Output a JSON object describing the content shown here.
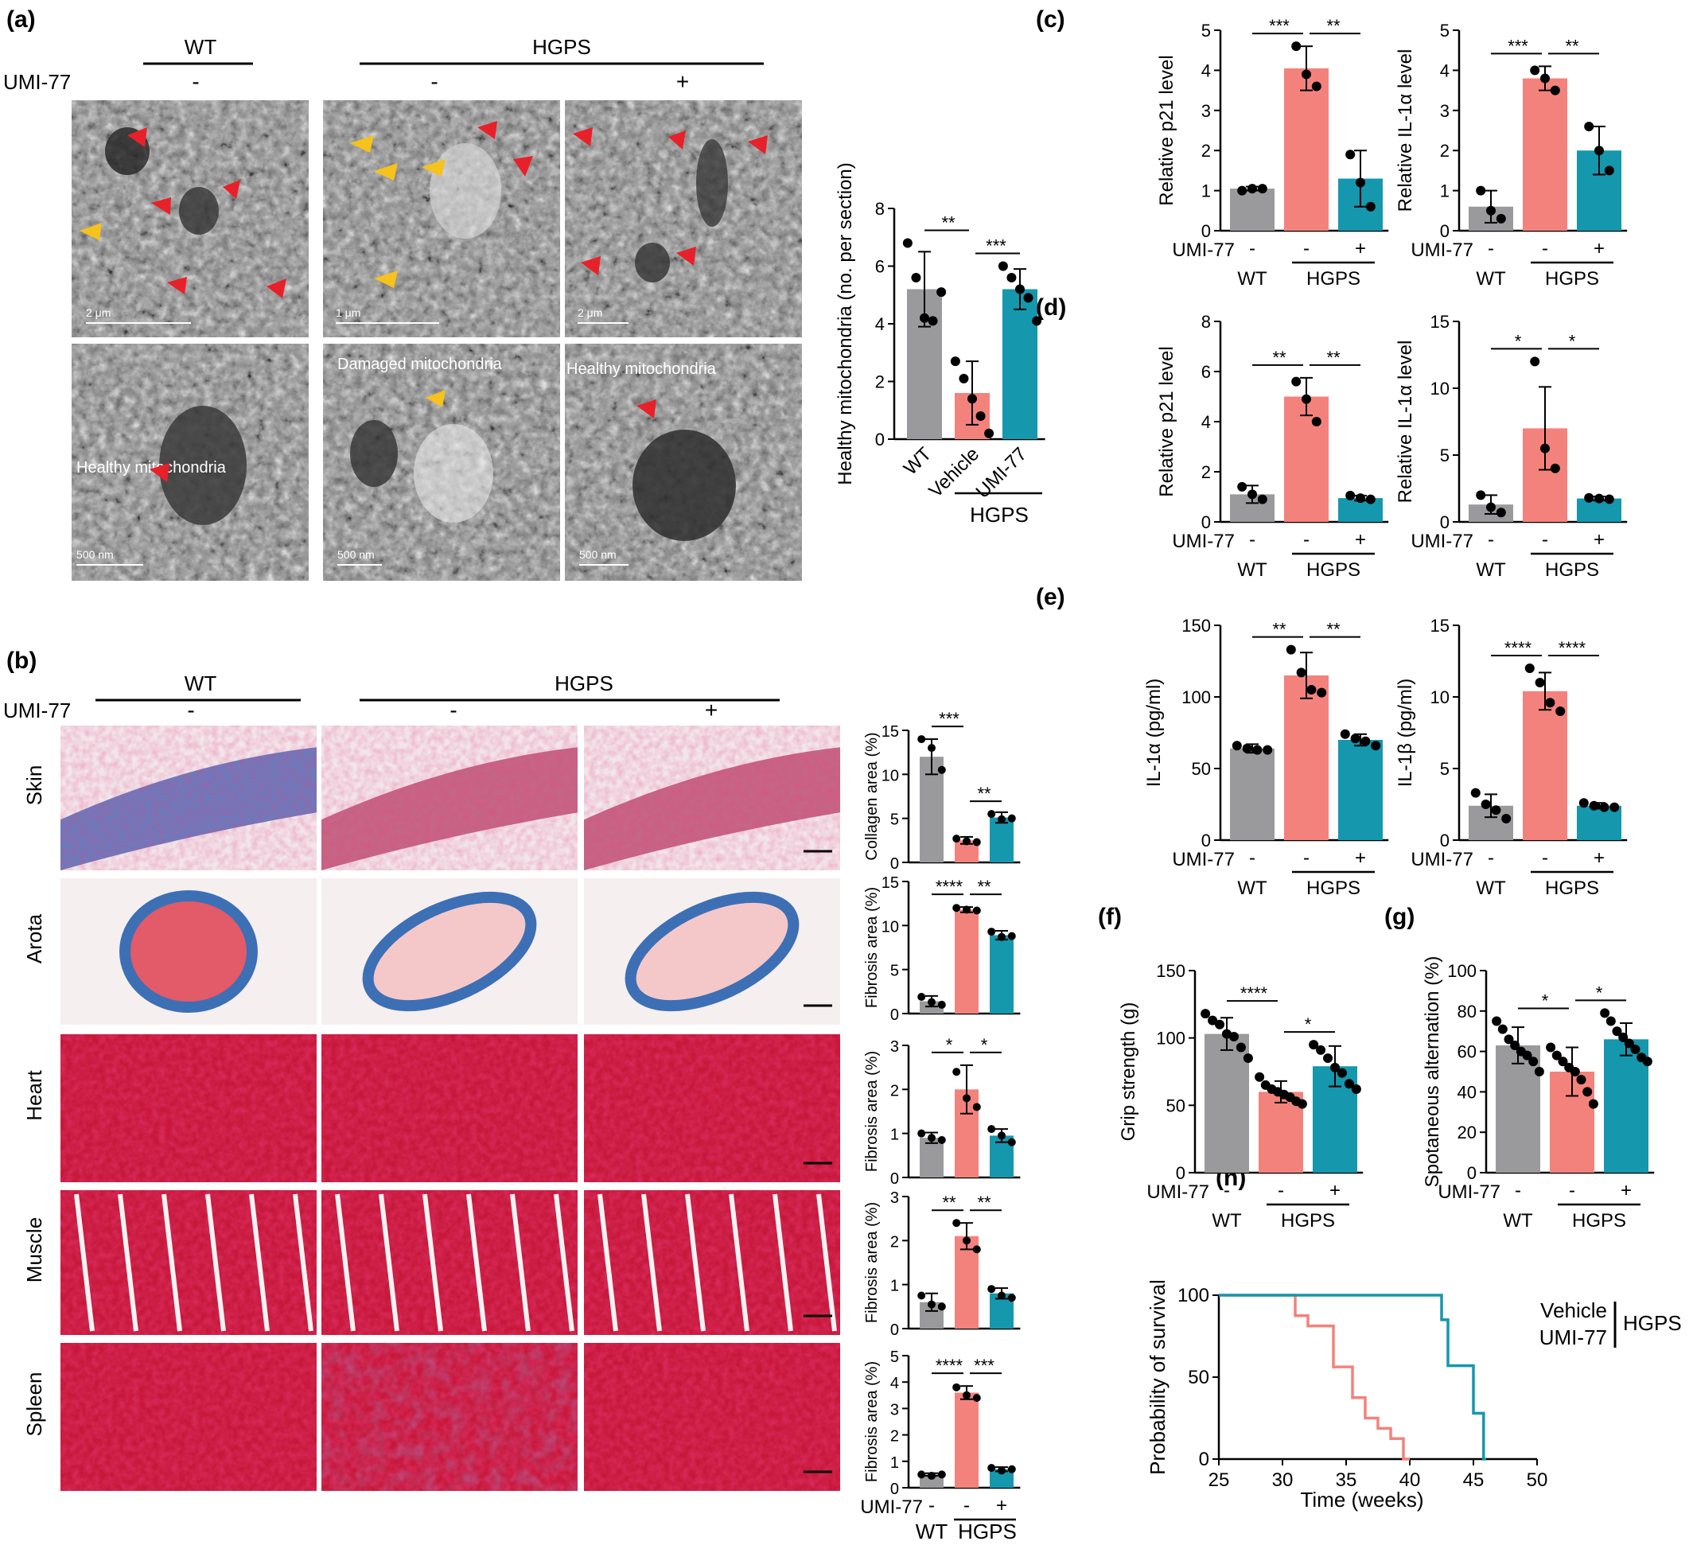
{
  "colors": {
    "wt": "#9a9a9c",
    "vehicle": "#f4827c",
    "umi": "#1597ad",
    "red_arrow": "#e8202a",
    "yellow_arrow": "#f6c21b"
  },
  "panel_labels": {
    "a": "(a)",
    "b": "(b)",
    "c": "(c)",
    "d": "(d)",
    "e": "(e)",
    "f": "(f)",
    "g": "(g)",
    "h": "(h)"
  },
  "common": {
    "wt": "WT",
    "hgps": "HGPS",
    "umi77": "UMI-77",
    "minus": "-",
    "plus": "+",
    "vehicle": "Vehicle"
  },
  "panel_a": {
    "annotations": {
      "damaged": "Damaged mitochondria",
      "healthy_top": "Healthy mitochondria",
      "healthy_left": "Healthy mitochondria"
    },
    "scalebars": [
      "2 μm",
      "1 μm",
      "2 μm",
      "500 nm",
      "500 nm",
      "500 nm"
    ]
  },
  "panel_b": {
    "rows": [
      "Skin",
      "Arota",
      "Heart",
      "Muscle",
      "Spleen"
    ]
  },
  "chart_data": [
    {
      "id": "a",
      "type": "bar",
      "categories": [
        "WT",
        "Vehicle",
        "UMI-77"
      ],
      "group_label": "HGPS",
      "ylabel": "Healthy mitochondria (no. per section)",
      "ylim": [
        0,
        8
      ],
      "yticks": [
        "0",
        "2",
        "4",
        "6",
        "8"
      ],
      "values": [
        5.2,
        1.6,
        5.2
      ],
      "errors": [
        1.3,
        1.1,
        0.7
      ],
      "points": [
        [
          6.8,
          5.6,
          4.2,
          4.1,
          5.1
        ],
        [
          2.7,
          2.1,
          1.4,
          0.8,
          0.2
        ],
        [
          6.0,
          5.6,
          5.2,
          4.9,
          4.1
        ]
      ],
      "significance": [
        "**",
        "***"
      ]
    },
    {
      "id": "b1",
      "type": "bar",
      "ylabel": "Collagen area (%)",
      "ylim": [
        0,
        15
      ],
      "yticks": [
        "0",
        "5",
        "10",
        "15"
      ],
      "values": [
        12.0,
        2.5,
        5.1
      ],
      "errors": [
        2.0,
        0.4,
        0.6
      ],
      "points": [
        [
          14.0,
          13.0,
          10.5
        ],
        [
          2.7,
          2.4,
          2.3
        ],
        [
          5.5,
          4.9,
          5.0
        ]
      ],
      "significance": [
        "***",
        "**"
      ]
    },
    {
      "id": "b2",
      "type": "bar",
      "ylabel": "Fibrosis area (%)",
      "ylim": [
        0,
        15
      ],
      "yticks": [
        "0",
        "5",
        "10",
        "15"
      ],
      "values": [
        1.4,
        11.8,
        8.9
      ],
      "errors": [
        0.6,
        0.3,
        0.5
      ],
      "points": [
        [
          1.9,
          1.3,
          1.0
        ],
        [
          12.0,
          11.8,
          11.7
        ],
        [
          9.3,
          8.7,
          8.8
        ]
      ],
      "significance": [
        "****",
        "**"
      ]
    },
    {
      "id": "b3",
      "type": "bar",
      "ylabel": "Fibrosis area (%)",
      "ylim": [
        0,
        3
      ],
      "yticks": [
        "0",
        "1",
        "2",
        "3"
      ],
      "values": [
        0.9,
        2.0,
        0.95
      ],
      "errors": [
        0.12,
        0.55,
        0.15
      ],
      "points": [
        [
          1.0,
          0.9,
          0.85
        ],
        [
          2.4,
          1.8,
          1.6
        ],
        [
          1.1,
          0.95,
          0.8
        ]
      ],
      "significance": [
        "*",
        "*"
      ]
    },
    {
      "id": "b4",
      "type": "bar",
      "ylabel": "Fibrosis area (%)",
      "ylim": [
        0,
        3
      ],
      "yticks": [
        "0",
        "1",
        "2",
        "3"
      ],
      "values": [
        0.6,
        2.1,
        0.8
      ],
      "errors": [
        0.2,
        0.3,
        0.12
      ],
      "points": [
        [
          0.75,
          0.55,
          0.5
        ],
        [
          2.4,
          2.0,
          1.8
        ],
        [
          0.9,
          0.75,
          0.7
        ]
      ],
      "significance": [
        "**",
        "**"
      ]
    },
    {
      "id": "b5",
      "type": "bar",
      "ylabel": "Fibrosis area (%)",
      "ylim": [
        0,
        5
      ],
      "yticks": [
        "0",
        "1",
        "2",
        "3",
        "4",
        "5"
      ],
      "values": [
        0.5,
        3.6,
        0.7
      ],
      "errors": [
        0.05,
        0.25,
        0.08
      ],
      "points": [
        [
          0.5,
          0.45,
          0.5
        ],
        [
          3.8,
          3.5,
          3.4
        ],
        [
          0.75,
          0.65,
          0.7
        ]
      ],
      "significance": [
        "****",
        "***"
      ]
    },
    {
      "id": "c1",
      "type": "bar",
      "ylabel": "Relative p21 level",
      "ylim": [
        0,
        5
      ],
      "yticks": [
        "0",
        "1",
        "2",
        "3",
        "4",
        "5"
      ],
      "values": [
        1.05,
        4.05,
        1.3
      ],
      "errors": [
        0.05,
        0.55,
        0.7
      ],
      "points": [
        [
          1.0,
          1.05,
          1.05
        ],
        [
          4.6,
          3.9,
          3.6
        ],
        [
          1.9,
          1.2,
          0.6
        ]
      ],
      "significance": [
        "***",
        "**"
      ]
    },
    {
      "id": "c2",
      "type": "bar",
      "ylabel": "Relative IL-1α level",
      "ylim": [
        0,
        5
      ],
      "yticks": [
        "0",
        "1",
        "2",
        "3",
        "4",
        "5"
      ],
      "values": [
        0.6,
        3.8,
        2.0
      ],
      "errors": [
        0.4,
        0.3,
        0.6
      ],
      "points": [
        [
          1.0,
          0.5,
          0.3
        ],
        [
          4.0,
          3.8,
          3.5
        ],
        [
          2.6,
          2.0,
          1.5
        ]
      ],
      "significance": [
        "***",
        "**"
      ]
    },
    {
      "id": "d1",
      "type": "bar",
      "ylabel": "Relative p21 level",
      "ylim": [
        0,
        8
      ],
      "yticks": [
        "0",
        "2",
        "4",
        "6",
        "8"
      ],
      "values": [
        1.1,
        5.0,
        0.95
      ],
      "errors": [
        0.35,
        0.75,
        0.1
      ],
      "points": [
        [
          1.4,
          1.1,
          0.9
        ],
        [
          5.6,
          4.9,
          4.0
        ],
        [
          1.05,
          0.95,
          0.9
        ]
      ],
      "significance": [
        "**",
        "**"
      ]
    },
    {
      "id": "d2",
      "type": "bar",
      "ylabel": "Relative IL-1α level",
      "ylim": [
        0,
        15
      ],
      "yticks": [
        "0",
        "5",
        "10",
        "15"
      ],
      "values": [
        1.3,
        7.0,
        1.75
      ],
      "errors": [
        0.7,
        3.1,
        0.15
      ],
      "points": [
        [
          2.0,
          1.1,
          0.7
        ],
        [
          12.0,
          5.5,
          4.0
        ],
        [
          1.8,
          1.75,
          1.7
        ]
      ],
      "significance": [
        "*",
        "*"
      ]
    },
    {
      "id": "e1",
      "type": "bar",
      "ylabel": "IL-1α (pg/ml)",
      "ylim": [
        0,
        150
      ],
      "yticks": [
        "0",
        "50",
        "100",
        "150"
      ],
      "values": [
        64,
        115,
        70
      ],
      "errors": [
        3,
        16,
        4
      ],
      "points": [
        [
          66,
          64,
          63,
          63
        ],
        [
          133,
          117,
          105,
          103
        ],
        [
          74,
          71,
          69,
          66
        ]
      ],
      "significance": [
        "**",
        "**"
      ]
    },
    {
      "id": "e2",
      "type": "bar",
      "ylabel": "IL-1β (pg/ml)",
      "ylim": [
        0,
        15
      ],
      "yticks": [
        "0",
        "5",
        "10",
        "15"
      ],
      "values": [
        2.4,
        10.4,
        2.4
      ],
      "errors": [
        0.8,
        1.3,
        0.2
      ],
      "points": [
        [
          3.3,
          2.5,
          2.1,
          1.5
        ],
        [
          12.0,
          11.0,
          9.6,
          9.0
        ],
        [
          2.6,
          2.4,
          2.3,
          2.3
        ]
      ],
      "significance": [
        "****",
        "****"
      ]
    },
    {
      "id": "f",
      "type": "bar",
      "ylabel": "Grip strength (g)",
      "ylim": [
        0,
        150
      ],
      "yticks": [
        "0",
        "50",
        "100",
        "150"
      ],
      "values": [
        103,
        60,
        79
      ],
      "errors": [
        12,
        8,
        15
      ],
      "points": [
        [
          118,
          113,
          110,
          103,
          101,
          93,
          85
        ],
        [
          71,
          65,
          62,
          60,
          58,
          56,
          53,
          51
        ],
        [
          95,
          91,
          85,
          78,
          74,
          66,
          62
        ]
      ],
      "significance": [
        "****",
        "*"
      ]
    },
    {
      "id": "g",
      "type": "bar",
      "ylabel": "Spotaneous alternation (%)",
      "ylim": [
        0,
        100
      ],
      "yticks": [
        "0",
        "20",
        "40",
        "60",
        "80",
        "100"
      ],
      "values": [
        63,
        50,
        66
      ],
      "errors": [
        9,
        12,
        8
      ],
      "points": [
        [
          75,
          71,
          66,
          63,
          60,
          58,
          55,
          50
        ],
        [
          62,
          58,
          55,
          52,
          50,
          46,
          40,
          34
        ],
        [
          79,
          75,
          70,
          67,
          64,
          61,
          57,
          55
        ]
      ],
      "significance": [
        "*",
        "*"
      ]
    },
    {
      "id": "h",
      "type": "line",
      "xlabel": "Time (weeks)",
      "ylabel": "Probability of survival",
      "xlim": [
        25,
        50
      ],
      "ylim": [
        0,
        100
      ],
      "xticks": [
        "25",
        "30",
        "35",
        "40",
        "45",
        "50"
      ],
      "yticks": [
        "0",
        "50",
        "100"
      ],
      "series": [
        {
          "name": "Vehicle",
          "steps": [
            [
              25,
              100
            ],
            [
              31,
              100
            ],
            [
              31,
              87.5
            ],
            [
              32,
              87.5
            ],
            [
              32,
              81.25
            ],
            [
              34,
              81.25
            ],
            [
              34,
              56.25
            ],
            [
              35.5,
              56.25
            ],
            [
              35.5,
              37.5
            ],
            [
              36.5,
              37.5
            ],
            [
              36.5,
              25
            ],
            [
              37.5,
              25
            ],
            [
              37.5,
              18.75
            ],
            [
              38.5,
              18.75
            ],
            [
              38.5,
              12.5
            ],
            [
              39.5,
              12.5
            ],
            [
              39.5,
              0
            ],
            [
              40,
              0
            ]
          ]
        },
        {
          "name": "UMI-77",
          "steps": [
            [
              25,
              100
            ],
            [
              42.5,
              100
            ],
            [
              42.5,
              85
            ],
            [
              43,
              85
            ],
            [
              43,
              57
            ],
            [
              45,
              57
            ],
            [
              45,
              28
            ],
            [
              45.8,
              28
            ],
            [
              45.8,
              0
            ],
            [
              46,
              0
            ]
          ]
        }
      ],
      "legend_group": "HGPS"
    }
  ]
}
